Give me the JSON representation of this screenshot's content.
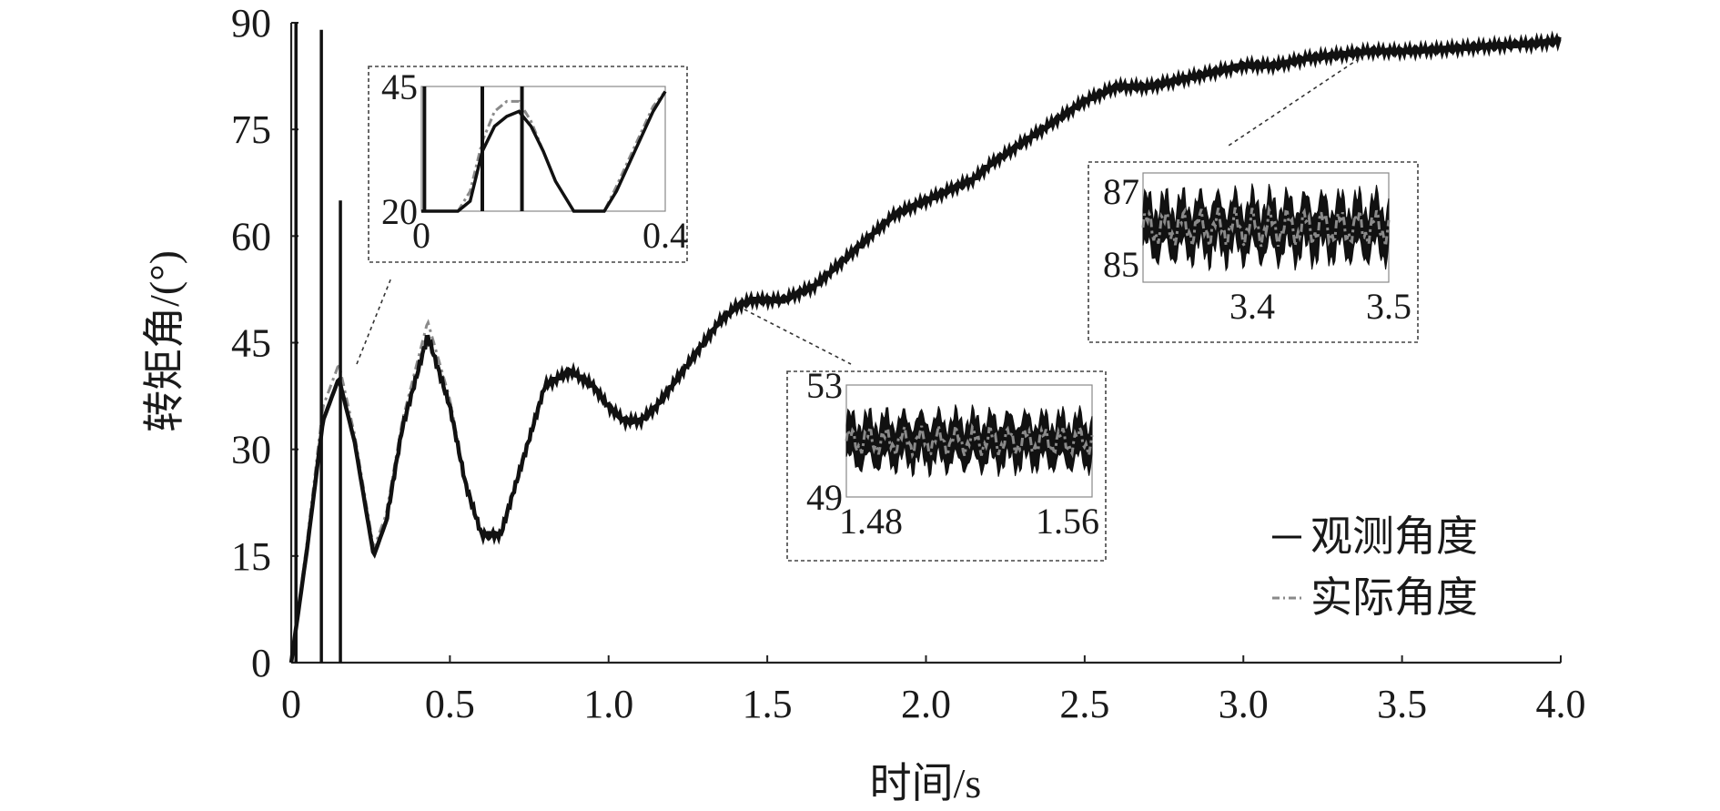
{
  "chart_data": {
    "type": "line",
    "xlabel": "时间/s",
    "ylabel": "转矩角/(°)",
    "xlim": [
      0,
      4.0
    ],
    "ylim": [
      0,
      90
    ],
    "x_ticks": [
      "0",
      "0.5",
      "1.0",
      "1.5",
      "2.0",
      "2.5",
      "3.0",
      "3.5",
      "4.0"
    ],
    "x_tick_values": [
      0,
      0.5,
      1.0,
      1.5,
      2.0,
      2.5,
      3.0,
      3.5,
      4.0
    ],
    "y_ticks": [
      "0",
      "15",
      "30",
      "45",
      "60",
      "75",
      "90"
    ],
    "y_tick_values": [
      0,
      15,
      30,
      45,
      60,
      75,
      90
    ],
    "grid": false,
    "legend_position": "bottom-right",
    "series": [
      {
        "name": "观测角度",
        "style": "solid",
        "color": "#111111",
        "spikes": [
          {
            "t": 0.015,
            "y_min": 0,
            "y_max": 90
          },
          {
            "t": 0.095,
            "y_min": 0,
            "y_max": 89
          },
          {
            "t": 0.155,
            "y_min": 0,
            "y_max": 65
          }
        ],
        "x": [
          0,
          0.05,
          0.1,
          0.15,
          0.2,
          0.26,
          0.3,
          0.35,
          0.43,
          0.5,
          0.55,
          0.6,
          0.66,
          0.72,
          0.8,
          0.88,
          0.95,
          1.0,
          1.05,
          1.1,
          1.15,
          1.2,
          1.25,
          1.3,
          1.35,
          1.4,
          1.45,
          1.5,
          1.55,
          1.6,
          1.65,
          1.7,
          1.75,
          1.8,
          1.85,
          1.9,
          1.95,
          2.0,
          2.05,
          2.1,
          2.15,
          2.2,
          2.3,
          2.4,
          2.5,
          2.6,
          2.7,
          2.8,
          2.9,
          3.0,
          3.1,
          3.2,
          3.3,
          3.4,
          3.5,
          3.6,
          3.7,
          3.8,
          3.9,
          4.0
        ],
        "y": [
          0,
          16,
          34,
          40,
          31,
          15,
          20,
          33,
          46,
          36,
          25,
          18,
          18,
          27,
          39,
          41,
          39,
          36,
          34,
          34,
          36,
          39,
          42,
          45,
          48,
          50,
          51,
          51,
          51,
          52,
          53,
          55,
          57,
          59,
          61,
          63,
          64,
          65,
          66,
          67,
          68,
          70,
          73,
          76,
          79,
          81,
          81,
          82,
          83,
          84,
          84,
          85,
          85.5,
          86,
          86,
          86.2,
          86.5,
          86.8,
          87,
          87.5
        ]
      },
      {
        "name": "实际角度",
        "style": "dash-dot",
        "color": "#8a8a8a",
        "x": [
          0,
          0.05,
          0.1,
          0.15,
          0.2,
          0.26,
          0.3,
          0.35,
          0.43,
          0.5,
          0.55,
          0.6,
          0.66,
          0.72,
          0.8,
          0.88,
          0.95,
          1.0,
          1.05,
          1.1,
          1.15,
          1.2,
          1.25,
          1.3,
          1.35,
          1.4,
          1.45,
          1.5,
          1.55,
          1.6,
          1.65,
          1.7,
          1.75,
          1.8,
          1.85,
          1.9,
          1.95,
          2.0,
          2.05,
          2.1,
          2.15,
          2.2,
          2.3,
          2.4,
          2.5,
          2.6,
          2.7,
          2.8,
          2.9,
          3.0,
          3.1,
          3.2,
          3.3,
          3.4,
          3.5,
          3.6,
          3.7,
          3.8,
          3.9,
          4.0
        ],
        "y": [
          0,
          17,
          36,
          42,
          32,
          16,
          21,
          34,
          48,
          37,
          25,
          18,
          18,
          27,
          39,
          41,
          39,
          36,
          34,
          34,
          36,
          39,
          42,
          45,
          48,
          50,
          51,
          51,
          51,
          52,
          53,
          55,
          57,
          59,
          61,
          63,
          64,
          65,
          66,
          67,
          68,
          70,
          73,
          76,
          79,
          81,
          81,
          82,
          83,
          84,
          84,
          85,
          85.5,
          86,
          86,
          86.2,
          86.5,
          86.8,
          87,
          87.5
        ]
      }
    ],
    "insets": [
      {
        "xlim": [
          0,
          0.4
        ],
        "ylim": [
          20,
          45
        ],
        "x_ticks": [
          "0",
          "0.4"
        ],
        "x_tick_values": [
          0,
          0.4
        ],
        "y_ticks": [
          "45",
          "20"
        ],
        "y_tick_values": [
          45,
          20
        ],
        "observed_x": [
          0.0,
          0.02,
          0.04,
          0.06,
          0.08,
          0.1,
          0.12,
          0.14,
          0.16,
          0.18,
          0.2,
          0.22,
          0.25,
          0.28,
          0.3,
          0.32,
          0.35,
          0.38,
          0.4
        ],
        "observed_y": [
          20,
          20,
          20,
          20,
          22,
          32,
          37,
          39,
          40,
          37,
          32,
          26,
          20,
          20,
          20,
          24,
          32,
          40,
          44
        ],
        "actual_y": [
          20,
          20,
          20,
          20,
          24,
          34,
          40,
          42,
          42,
          38,
          32,
          26,
          20,
          20,
          20,
          25,
          33,
          41,
          44
        ],
        "spikes": [
          0.005,
          0.1,
          0.165
        ]
      },
      {
        "xlim": [
          1.47,
          1.57
        ],
        "ylim": [
          49,
          53
        ],
        "x_ticks": [
          "1.48",
          "1.56"
        ],
        "x_tick_values": [
          1.48,
          1.56
        ],
        "y_ticks": [
          "53",
          "49"
        ],
        "y_tick_values": [
          53,
          49
        ],
        "center": 51,
        "band": 0.8
      },
      {
        "xlim": [
          3.32,
          3.5
        ],
        "ylim": [
          84.5,
          87.5
        ],
        "x_ticks": [
          "3.4",
          "3.5"
        ],
        "x_tick_values": [
          3.4,
          3.5
        ],
        "y_ticks": [
          "87",
          "85"
        ],
        "y_tick_values": [
          87,
          85
        ],
        "center": 86,
        "band": 0.7
      }
    ]
  }
}
